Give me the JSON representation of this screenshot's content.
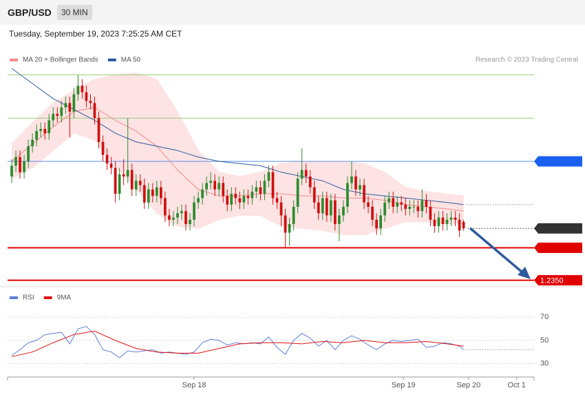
{
  "header": {
    "symbol": "GBP/USD",
    "interval": "30 MIN",
    "timestamp": "Tuesday, September 19, 2023 7:25:25 AM CET",
    "credit": "Research © 2023 Trading Central"
  },
  "chart_data": [
    {
      "type": "candlestick",
      "xlim": [
        -1,
        126
      ],
      "ylim": [
        1.2347,
        1.245
      ],
      "up_color": "#2e8b2e",
      "down_color": "#d01010",
      "candles": {
        "open": [
          1.2398,
          1.2403,
          1.2407,
          1.24,
          1.2405,
          1.2412,
          1.2415,
          1.2419,
          1.242,
          1.2418,
          1.2424,
          1.2427,
          1.2426,
          1.243,
          1.2432,
          1.2428,
          1.2436,
          1.244,
          1.2437,
          1.2433,
          1.2432,
          1.2425,
          1.2414,
          1.2408,
          1.2404,
          1.2402,
          1.239,
          1.2399,
          1.2398,
          1.2401,
          1.2392,
          1.2396,
          1.2394,
          1.2386,
          1.2392,
          1.2389,
          1.2393,
          1.2388,
          1.238,
          1.2378,
          1.2379,
          1.2381,
          1.2382,
          1.2376,
          1.2378,
          1.2386,
          1.2388,
          1.2392,
          1.2395,
          1.2396,
          1.2392,
          1.2395,
          1.2389,
          1.2385,
          1.239,
          1.2388,
          1.2386,
          1.2389,
          1.2388,
          1.2391,
          1.2393,
          1.239,
          1.2396,
          1.24,
          1.2388,
          1.2386,
          1.238,
          1.2372,
          1.2376,
          1.2384,
          1.2397,
          1.2401,
          1.2398,
          1.2393,
          1.2386,
          1.2381,
          1.2388,
          1.238,
          1.2387,
          1.2376,
          1.238,
          1.2384,
          1.2395,
          1.2398,
          1.2392,
          1.2394,
          1.2386,
          1.2384,
          1.2378,
          1.2374,
          1.238,
          1.2386,
          1.2388,
          1.2384,
          1.2386,
          1.2385,
          1.2383,
          1.2384,
          1.2384,
          1.2382,
          1.2387,
          1.2384,
          1.2378,
          1.2375,
          1.2379,
          1.2376,
          1.2378,
          1.2379,
          1.2378,
          1.2377
        ],
        "high": [
          1.2406,
          1.241,
          1.241,
          1.2408,
          1.2415,
          1.2418,
          1.2422,
          1.2423,
          1.2423,
          1.2427,
          1.243,
          1.243,
          1.2433,
          1.2435,
          1.2435,
          1.2439,
          1.2445,
          1.2443,
          1.244,
          1.2436,
          1.2435,
          1.2428,
          1.2417,
          1.2411,
          1.2407,
          1.2405,
          1.2402,
          1.2406,
          1.2425,
          1.2404,
          1.2399,
          1.2399,
          1.2397,
          1.2395,
          1.2395,
          1.2396,
          1.2396,
          1.2391,
          1.2383,
          1.2382,
          1.2384,
          1.2385,
          1.2385,
          1.2381,
          1.2389,
          1.2391,
          1.2395,
          1.2398,
          1.24,
          1.2399,
          1.2398,
          1.2398,
          1.2392,
          1.2393,
          1.2393,
          1.2391,
          1.2392,
          1.2392,
          1.2394,
          1.2396,
          1.2396,
          1.2399,
          1.2403,
          1.2403,
          1.2391,
          1.2389,
          1.2383,
          1.2379,
          1.2387,
          1.24,
          1.2411,
          1.2404,
          1.2401,
          1.2396,
          1.2389,
          1.2391,
          1.2391,
          1.239,
          1.239,
          1.2383,
          1.2387,
          1.2398,
          1.2405,
          1.2401,
          1.2397,
          1.2397,
          1.2389,
          1.2387,
          1.2381,
          1.2383,
          1.2389,
          1.2391,
          1.2391,
          1.2389,
          1.2389,
          1.2388,
          1.2387,
          1.2387,
          1.2387,
          1.2392,
          1.239,
          1.2387,
          1.2381,
          1.2382,
          1.2382,
          1.2381,
          1.2382,
          1.2382,
          1.2381,
          1.2378
        ],
        "low": [
          1.2395,
          1.24,
          1.2397,
          1.2397,
          1.2402,
          1.2409,
          1.2412,
          1.2416,
          1.2415,
          1.2415,
          1.2421,
          1.2423,
          1.2423,
          1.2427,
          1.2416,
          1.2425,
          1.2433,
          1.2434,
          1.243,
          1.2429,
          1.2422,
          1.2411,
          1.2405,
          1.2401,
          1.2399,
          1.2386,
          1.2387,
          1.2394,
          1.2395,
          1.2389,
          1.2389,
          1.2391,
          1.2383,
          1.2383,
          1.2386,
          1.2386,
          1.2385,
          1.2377,
          1.2375,
          1.2375,
          1.2376,
          1.2378,
          1.2373,
          1.2373,
          1.2375,
          1.2383,
          1.2385,
          1.2389,
          1.2392,
          1.2389,
          1.2389,
          1.2386,
          1.2382,
          1.2382,
          1.2385,
          1.2383,
          1.2383,
          1.2385,
          1.2385,
          1.2388,
          1.2387,
          1.2387,
          1.2393,
          1.2385,
          1.2383,
          1.2375,
          1.2365,
          1.2366,
          1.2373,
          1.2381,
          1.2394,
          1.2395,
          1.239,
          1.2383,
          1.2378,
          1.2378,
          1.2377,
          1.2377,
          1.2373,
          1.2368,
          1.2377,
          1.2381,
          1.2392,
          1.2389,
          1.2389,
          1.2383,
          1.2381,
          1.2375,
          1.2371,
          1.2371,
          1.2377,
          1.2383,
          1.2381,
          1.2381,
          1.2382,
          1.238,
          1.238,
          1.2381,
          1.2379,
          1.2379,
          1.2381,
          1.2375,
          1.2372,
          1.2372,
          1.2373,
          1.2373,
          1.2375,
          1.2375,
          1.237,
          1.2373
        ],
        "close": [
          1.2403,
          1.2407,
          1.24,
          1.2405,
          1.2412,
          1.2415,
          1.2419,
          1.242,
          1.2418,
          1.2424,
          1.2427,
          1.2426,
          1.243,
          1.2432,
          1.2428,
          1.2436,
          1.244,
          1.2437,
          1.2433,
          1.2432,
          1.2425,
          1.2414,
          1.2408,
          1.2404,
          1.2402,
          1.239,
          1.2399,
          1.2398,
          1.2401,
          1.2392,
          1.2396,
          1.2394,
          1.2386,
          1.2392,
          1.2389,
          1.2393,
          1.2388,
          1.238,
          1.2378,
          1.2379,
          1.2381,
          1.2382,
          1.2376,
          1.2378,
          1.2386,
          1.2388,
          1.2392,
          1.2395,
          1.2396,
          1.2392,
          1.2395,
          1.2389,
          1.2385,
          1.239,
          1.2388,
          1.2386,
          1.2389,
          1.2388,
          1.2391,
          1.2393,
          1.239,
          1.2396,
          1.24,
          1.2388,
          1.2386,
          1.238,
          1.2372,
          1.2376,
          1.2384,
          1.2397,
          1.2401,
          1.2398,
          1.2393,
          1.2386,
          1.2381,
          1.2388,
          1.238,
          1.2387,
          1.2376,
          1.238,
          1.2384,
          1.2395,
          1.2398,
          1.2392,
          1.2394,
          1.2386,
          1.2384,
          1.2378,
          1.2374,
          1.238,
          1.2386,
          1.2388,
          1.2384,
          1.2386,
          1.2385,
          1.2383,
          1.2384,
          1.2384,
          1.2382,
          1.2387,
          1.2384,
          1.2378,
          1.2375,
          1.2379,
          1.2376,
          1.2378,
          1.2379,
          1.2378,
          1.2373,
          1.2374
        ]
      },
      "indicators": [
        {
          "name": "MA 20 + Bollinger Bands",
          "color": "#f08a8a",
          "band_color": "#fde3e3",
          "x": [
            0,
            5,
            10,
            15,
            20,
            25,
            30,
            35,
            40,
            45,
            50,
            55,
            60,
            65,
            70,
            75,
            80,
            85,
            90,
            95,
            100,
            105,
            109
          ],
          "values": [
            1.2405,
            1.2413,
            1.2421,
            1.2428,
            1.243,
            1.2424,
            1.2419,
            1.2412,
            1.2401,
            1.2392,
            1.2389,
            1.2389,
            1.239,
            1.239,
            1.2389,
            1.2389,
            1.2388,
            1.2388,
            1.2387,
            1.2385,
            1.2384,
            1.2383,
            1.2382
          ],
          "upper": [
            1.2413,
            1.2423,
            1.2432,
            1.2438,
            1.2443,
            1.2445,
            1.2446,
            1.2443,
            1.2428,
            1.241,
            1.24,
            1.2398,
            1.24,
            1.2404,
            1.2405,
            1.2405,
            1.2405,
            1.2404,
            1.24,
            1.2393,
            1.2391,
            1.239,
            1.2389
          ],
          "lower": [
            1.2397,
            1.2402,
            1.241,
            1.2418,
            1.2415,
            1.2403,
            1.2392,
            1.2381,
            1.2375,
            1.2374,
            1.2378,
            1.238,
            1.238,
            1.2375,
            1.2374,
            1.2373,
            1.2371,
            1.2371,
            1.2374,
            1.2377,
            1.2377,
            1.2376,
            1.2376
          ]
        },
        {
          "name": "MA 50",
          "color": "#2f5a9e",
          "x": [
            0,
            5,
            10,
            15,
            20,
            25,
            30,
            35,
            40,
            45,
            50,
            55,
            60,
            65,
            70,
            75,
            80,
            85,
            90,
            95,
            100,
            105,
            109
          ],
          "values": [
            1.2448,
            1.2441,
            1.2434,
            1.2429,
            1.2424,
            1.2418,
            1.2414,
            1.2412,
            1.241,
            1.2407,
            1.2405,
            1.2404,
            1.2403,
            1.24,
            1.2398,
            1.2396,
            1.2392,
            1.239,
            1.2389,
            1.2388,
            1.2387,
            1.2386,
            1.2385
          ]
        }
      ],
      "levels": [
        {
          "value": 1.2445,
          "color": "#9acd7a",
          "text_color": "#4f9a1f",
          "box": false,
          "style": "solid",
          "width": 1
        },
        {
          "value": 1.2425,
          "color": "#9acd7a",
          "text_color": "#4f9a1f",
          "box": false,
          "style": "solid",
          "width": 1
        },
        {
          "value": 1.2405,
          "color": "#5b8def",
          "text_color": "#ffffff",
          "box": true,
          "box_color": "#1a5ff0",
          "style": "solid",
          "width": 1
        },
        {
          "value": 1.2374,
          "color": "#333333",
          "text_color": "#ffffff",
          "box": true,
          "box_color": "#333333",
          "style": "dotted",
          "width": 1
        },
        {
          "value": 1.2365,
          "color": "#e00000",
          "text_color": "#ffffff",
          "box": true,
          "box_color": "#e00000",
          "style": "solid",
          "width": 2
        },
        {
          "value": 1.235,
          "label": "1.2350",
          "color": "#e00000",
          "text_color": "#ffffff",
          "box": true,
          "box_color": "#e00000",
          "style": "solid",
          "width": 2
        }
      ]
    },
    {
      "type": "line",
      "xlim": [
        -1,
        126
      ],
      "ylim": [
        22,
        82
      ],
      "yticks": [
        30,
        50,
        70
      ],
      "grid": true,
      "xticks": [
        {
          "value": 44,
          "label": "Sep 18"
        },
        {
          "value": 94.5,
          "label": "Sep 19"
        },
        {
          "value": 110.2,
          "label": "Sep 20"
        },
        {
          "value": 121.8,
          "label": "Oct 1"
        }
      ],
      "series": [
        {
          "name": "RSI",
          "color": "#5b7fd6",
          "x": [
            0,
            2,
            4,
            6,
            8,
            10,
            12,
            14,
            16,
            18,
            20,
            22,
            24,
            26,
            28,
            30,
            32,
            34,
            36,
            38,
            40,
            42,
            44,
            46,
            48,
            50,
            52,
            54,
            56,
            58,
            60,
            62,
            64,
            66,
            68,
            70,
            72,
            74,
            76,
            78,
            80,
            82,
            84,
            86,
            88,
            90,
            92,
            94,
            96,
            98,
            100,
            102,
            104,
            106,
            108,
            109
          ],
          "values": [
            37,
            42,
            48,
            50,
            55,
            56,
            57,
            47,
            60,
            62,
            55,
            42,
            40,
            35,
            41,
            40,
            41,
            42,
            39,
            40,
            39,
            38,
            40,
            48,
            51,
            50,
            46,
            48,
            47,
            48,
            47,
            53,
            44,
            38,
            50,
            56,
            52,
            45,
            50,
            42,
            50,
            54,
            51,
            46,
            42,
            47,
            50,
            49,
            50,
            51,
            44,
            45,
            48,
            47,
            45,
            42
          ]
        },
        {
          "name": "9MA",
          "color": "#e01010",
          "x": [
            0,
            5,
            10,
            15,
            20,
            25,
            30,
            35,
            40,
            45,
            50,
            55,
            60,
            65,
            70,
            75,
            80,
            85,
            90,
            95,
            100,
            105,
            109
          ],
          "values": [
            36,
            40,
            48,
            55,
            58,
            50,
            43,
            40,
            39,
            39,
            43,
            47,
            48,
            48,
            47,
            49,
            48,
            50,
            48,
            48,
            49,
            47,
            45
          ]
        }
      ]
    }
  ]
}
